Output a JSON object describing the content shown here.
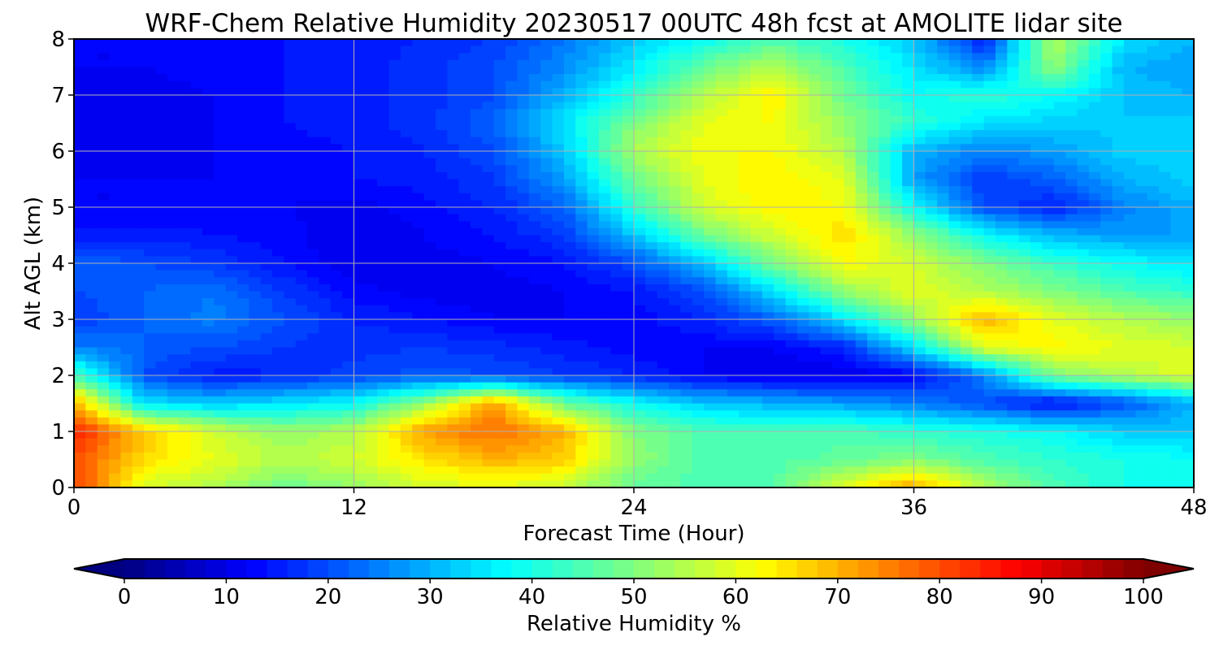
{
  "chart_data": {
    "type": "heatmap",
    "title": "WRF-Chem Relative Humidity 20230517 00UTC 48h fcst at AMOLITE lidar site",
    "xlabel": "Forecast Time (Hour)",
    "ylabel": "Alt AGL (km)",
    "xlim": [
      0,
      48
    ],
    "ylim": [
      0,
      8
    ],
    "x_ticks": [
      "0",
      "12",
      "24",
      "36",
      "48"
    ],
    "y_ticks": [
      "0",
      "1",
      "2",
      "3",
      "4",
      "5",
      "6",
      "7",
      "8"
    ],
    "grid": true,
    "colormap": "jet",
    "colorbar": {
      "label": "Relative Humidity %",
      "orientation": "horizontal",
      "placement": "bottom",
      "range": [
        0,
        100
      ],
      "extend": "both",
      "ticks": [
        "0",
        "10",
        "20",
        "30",
        "40",
        "50",
        "60",
        "70",
        "80",
        "90",
        "100"
      ]
    },
    "x": [
      0,
      3,
      6,
      9,
      12,
      15,
      18,
      21,
      24,
      27,
      30,
      33,
      36,
      39,
      42,
      45,
      48
    ],
    "y": [
      0,
      0.5,
      1,
      1.5,
      2,
      2.5,
      3,
      3.5,
      4,
      4.5,
      5,
      5.5,
      6,
      6.5,
      7,
      7.5,
      8
    ],
    "values": [
      [
        82,
        58,
        55,
        48,
        52,
        58,
        60,
        57,
        47,
        45,
        46,
        60,
        72,
        55,
        45,
        40,
        40
      ],
      [
        80,
        66,
        60,
        55,
        58,
        65,
        70,
        67,
        52,
        45,
        45,
        47,
        50,
        45,
        42,
        40,
        38
      ],
      [
        85,
        68,
        58,
        52,
        55,
        72,
        77,
        70,
        50,
        45,
        44,
        45,
        42,
        40,
        38,
        33,
        32
      ],
      [
        70,
        35,
        32,
        35,
        38,
        52,
        72,
        48,
        38,
        32,
        30,
        28,
        25,
        20,
        13,
        20,
        30
      ],
      [
        45,
        20,
        15,
        16,
        19,
        21,
        20,
        18,
        16,
        12,
        10,
        10,
        12,
        25,
        50,
        55,
        60
      ],
      [
        25,
        22,
        20,
        18,
        17,
        18,
        17,
        15,
        13,
        12,
        12,
        16,
        35,
        60,
        63,
        60,
        58
      ],
      [
        18,
        22,
        25,
        20,
        16,
        14,
        12,
        12,
        13,
        16,
        22,
        35,
        52,
        70,
        60,
        55,
        52
      ],
      [
        20,
        22,
        24,
        18,
        13,
        11,
        11,
        12,
        14,
        20,
        35,
        52,
        60,
        55,
        50,
        45,
        42
      ],
      [
        22,
        20,
        18,
        14,
        10,
        11,
        12,
        14,
        20,
        32,
        50,
        62,
        58,
        50,
        43,
        38,
        35
      ],
      [
        15,
        15,
        14,
        13,
        10,
        12,
        14,
        18,
        32,
        48,
        58,
        66,
        52,
        38,
        30,
        28,
        28
      ],
      [
        12,
        12,
        13,
        12,
        11,
        13,
        16,
        22,
        42,
        58,
        64,
        62,
        38,
        20,
        15,
        25,
        30
      ],
      [
        12,
        12,
        12,
        13,
        14,
        15,
        18,
        28,
        48,
        60,
        64,
        60,
        28,
        18,
        22,
        30,
        33
      ],
      [
        12,
        11,
        12,
        13,
        14,
        16,
        20,
        32,
        54,
        62,
        62,
        55,
        30,
        25,
        28,
        33,
        33
      ],
      [
        11,
        11,
        12,
        14,
        15,
        17,
        22,
        35,
        50,
        60,
        62,
        52,
        42,
        35,
        33,
        32,
        33
      ],
      [
        11,
        11,
        12,
        14,
        15,
        17,
        20,
        30,
        42,
        55,
        64,
        48,
        38,
        42,
        38,
        32,
        30
      ],
      [
        12,
        12,
        13,
        14,
        15,
        17,
        20,
        26,
        36,
        48,
        55,
        45,
        35,
        25,
        52,
        30,
        28
      ],
      [
        12,
        12,
        13,
        14,
        15,
        16,
        18,
        24,
        32,
        38,
        45,
        40,
        32,
        15,
        55,
        35,
        30
      ]
    ]
  }
}
